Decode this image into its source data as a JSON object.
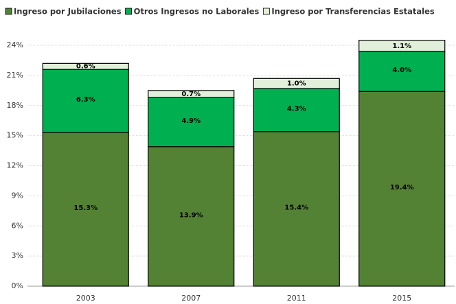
{
  "chart_data": {
    "type": "stacked_bar",
    "categories": [
      "2003",
      "2007",
      "2011",
      "2015"
    ],
    "series": [
      {
        "name": "Ingreso por Jubilaciones",
        "color": "#548235",
        "values": [
          15.3,
          13.9,
          15.4,
          19.4
        ],
        "value_labels": [
          "15.3%",
          "13.9%",
          "15.4%",
          "19.4%"
        ]
      },
      {
        "name": "Otros Ingresos no Laborales",
        "color": "#00b050",
        "values": [
          6.3,
          4.9,
          4.3,
          4.0
        ],
        "value_labels": [
          "6.3%",
          "4.9%",
          "4.3%",
          "4.0%"
        ]
      },
      {
        "name": "Ingreso por Transferencias Estatales",
        "color": "#e2efda",
        "values": [
          0.6,
          0.7,
          1.0,
          1.1
        ],
        "value_labels": [
          "0.6%",
          "0.7%",
          "1.0%",
          "1.1%"
        ]
      }
    ],
    "ylim": [
      0,
      25
    ],
    "yticks": [
      {
        "value": 0,
        "label": "0%"
      },
      {
        "value": 3,
        "label": "3%"
      },
      {
        "value": 6,
        "label": "6%"
      },
      {
        "value": 9,
        "label": "9%"
      },
      {
        "value": 12,
        "label": "12%"
      },
      {
        "value": 15,
        "label": "15%"
      },
      {
        "value": 18,
        "label": "18%"
      },
      {
        "value": 21,
        "label": "21%"
      },
      {
        "value": 24,
        "label": "24%"
      }
    ],
    "grid": true
  }
}
